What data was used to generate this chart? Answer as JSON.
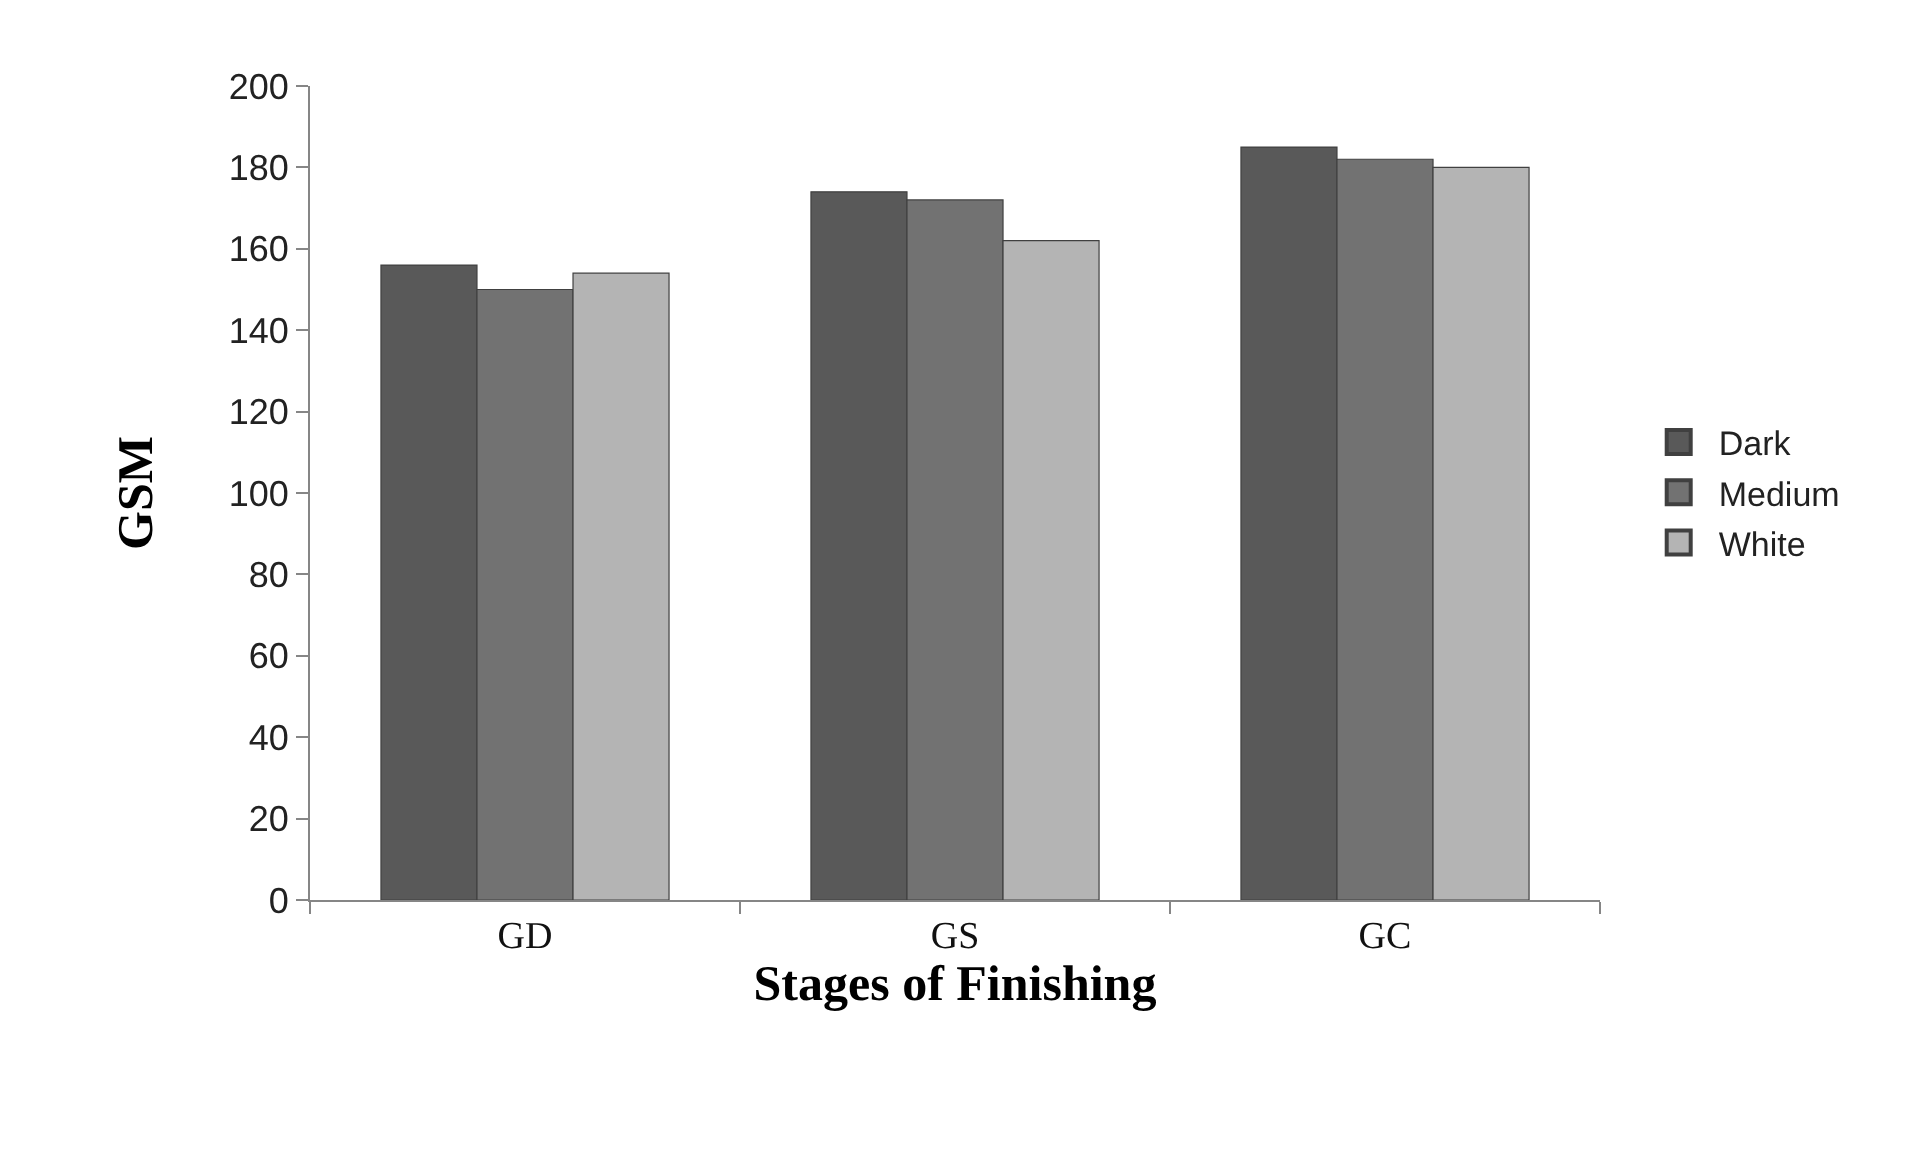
{
  "chart_data": {
    "type": "bar",
    "xlabel": "Stages of Finishing",
    "ylabel": "GSM",
    "categories": [
      "GD",
      "GS",
      "GC"
    ],
    "series": [
      {
        "name": "Dark",
        "color": "#595959",
        "values": [
          156,
          174,
          185
        ]
      },
      {
        "name": "Medium",
        "color": "#727272",
        "values": [
          150,
          172,
          182
        ]
      },
      {
        "name": "White",
        "color": "#b4b4b4",
        "values": [
          154,
          162,
          180
        ]
      }
    ],
    "ylim": [
      0,
      200
    ],
    "yticks": [
      0,
      20,
      40,
      60,
      80,
      100,
      120,
      140,
      160,
      180,
      200
    ],
    "legend": "right"
  }
}
